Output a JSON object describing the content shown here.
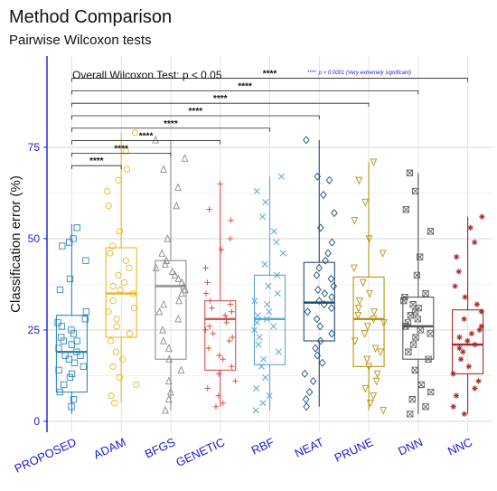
{
  "chart_data": {
    "type": "box",
    "title": "Method Comparison",
    "subtitle": "Pairwise Wilcoxon tests",
    "ylabel": "Classification error (%)",
    "xlabel": "",
    "ylim": [
      -3,
      100
    ],
    "yticks": [
      0,
      25,
      50,
      75
    ],
    "grid": true,
    "overall_test": "Overall Wilcoxon Test: p < 0.05",
    "significance_note": "****: p < 0.0001 (Very extremely significant)",
    "categories": [
      "PROPOSED",
      "ADAM",
      "BFGS",
      "GENETIC",
      "RBF",
      "NEAT",
      "PRUNE",
      "DNN",
      "NNC"
    ],
    "colors": [
      "#2E86C1",
      "#E9B824",
      "#8C8C8C",
      "#D9534F",
      "#5DA5DA",
      "#1F4E79",
      "#B5950F",
      "#555555",
      "#A52A2A"
    ],
    "markers": [
      "square",
      "circle",
      "triangle-up",
      "plus",
      "cross",
      "diamond",
      "triangle-down",
      "boxed-x",
      "asterisk"
    ],
    "boxes": [
      {
        "q1": 8,
        "median": 19,
        "q3": 29,
        "whisker_low": 2,
        "whisker_high": 54
      },
      {
        "q1": 23,
        "median": 35,
        "q3": 47.5,
        "whisker_low": 5,
        "whisker_high": 79
      },
      {
        "q1": 17,
        "median": 37,
        "q3": 44,
        "whisker_low": 3,
        "whisker_high": 77
      },
      {
        "q1": 14,
        "median": 28,
        "q3": 33,
        "whisker_low": 4,
        "whisker_high": 65
      },
      {
        "q1": 15.5,
        "median": 28,
        "q3": 40,
        "whisker_low": 3,
        "whisker_high": 67
      },
      {
        "q1": 22,
        "median": 32.5,
        "q3": 43.5,
        "whisker_low": 4,
        "whisker_high": 77
      },
      {
        "q1": 15,
        "median": 28,
        "q3": 39.5,
        "whisker_low": 3,
        "whisker_high": 71
      },
      {
        "q1": 17,
        "median": 26,
        "q3": 34,
        "whisker_low": 2,
        "whisker_high": 68
      },
      {
        "q1": 13,
        "median": 21,
        "q3": 30.5,
        "whisker_low": 2,
        "whisker_high": 56
      }
    ],
    "points": [
      [
        4,
        6,
        8,
        10,
        12,
        13,
        14,
        15,
        16,
        17,
        18,
        18,
        19,
        20,
        21,
        22,
        22,
        23,
        24,
        25,
        26,
        27,
        28,
        30,
        36,
        39,
        44,
        48,
        49,
        50,
        53
      ],
      [
        5,
        7,
        10,
        12,
        15,
        17,
        19,
        22,
        24,
        26,
        28,
        30,
        31,
        33,
        35,
        36,
        37,
        38,
        40,
        42,
        44,
        46,
        48,
        52,
        59,
        63,
        66,
        69,
        74,
        79
      ],
      [
        3,
        6,
        8,
        11,
        14,
        17,
        20,
        22,
        25,
        28,
        30,
        32,
        33,
        35,
        36,
        37,
        38,
        39,
        40,
        41,
        42,
        43,
        44,
        46,
        50,
        59,
        64,
        69,
        72,
        77
      ],
      [
        4,
        5,
        7,
        9,
        11,
        13,
        15,
        17,
        18,
        20,
        22,
        23,
        24,
        25,
        26,
        27,
        28,
        29,
        30,
        31,
        32,
        33,
        35,
        38,
        42,
        47,
        50,
        55,
        58,
        65
      ],
      [
        3,
        5,
        7,
        9,
        12,
        15,
        17,
        19,
        21,
        23,
        25,
        26,
        27,
        28,
        29,
        30,
        32,
        33,
        35,
        37,
        40,
        43,
        46,
        49,
        52,
        56,
        60,
        63,
        67
      ],
      [
        4,
        6,
        8,
        11,
        13,
        16,
        18,
        20,
        22,
        24,
        26,
        28,
        30,
        31,
        32,
        33,
        34,
        35,
        36,
        37,
        39,
        40,
        42,
        44,
        46,
        49,
        53,
        57,
        62,
        66,
        67,
        77
      ],
      [
        3,
        5,
        7,
        9,
        11,
        13,
        15,
        17,
        19,
        20,
        22,
        24,
        26,
        27,
        28,
        29,
        30,
        31,
        33,
        35,
        38,
        42,
        46,
        50,
        55,
        60,
        66,
        71
      ],
      [
        2,
        4,
        6,
        8,
        10,
        14,
        17,
        19,
        21,
        23,
        24,
        25,
        26,
        27,
        28,
        29,
        30,
        31,
        32,
        33,
        34,
        35,
        40,
        45,
        52,
        58,
        63,
        68
      ],
      [
        2,
        4,
        7,
        9,
        11,
        13,
        15,
        17,
        19,
        20,
        21,
        22,
        23,
        24,
        25,
        26,
        28,
        30,
        32,
        34,
        37,
        41,
        45,
        49,
        53,
        56
      ]
    ],
    "comparisons": [
      {
        "group1": "PROPOSED",
        "group2": "ADAM",
        "label": "****"
      },
      {
        "group1": "PROPOSED",
        "group2": "BFGS",
        "label": "****"
      },
      {
        "group1": "PROPOSED",
        "group2": "GENETIC",
        "label": "****"
      },
      {
        "group1": "PROPOSED",
        "group2": "RBF",
        "label": "****"
      },
      {
        "group1": "PROPOSED",
        "group2": "NEAT",
        "label": "****"
      },
      {
        "group1": "PROPOSED",
        "group2": "PRUNE",
        "label": "****"
      },
      {
        "group1": "PROPOSED",
        "group2": "DNN",
        "label": "****"
      },
      {
        "group1": "PROPOSED",
        "group2": "NNC",
        "label": "****"
      }
    ]
  }
}
